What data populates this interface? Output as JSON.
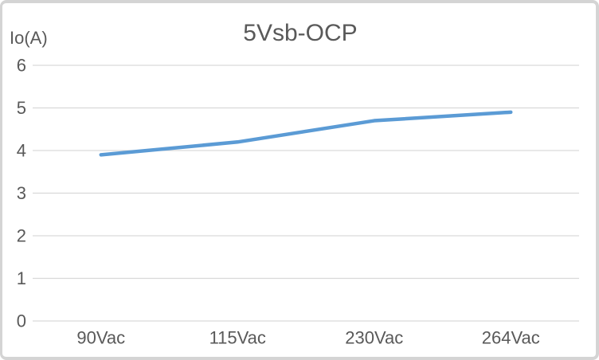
{
  "window": {
    "background_color": "#ffffff",
    "frame_color": "#d4d4d4"
  },
  "chart_data": {
    "type": "line",
    "title": "5Vsb-OCP",
    "y_axis_label": "Io(A)",
    "xlabel": "",
    "ylabel": "Io(A)",
    "categories": [
      "90Vac",
      "115Vac",
      "230Vac",
      "264Vac"
    ],
    "series": [
      {
        "values": [
          3.9,
          4.2,
          4.7,
          4.9
        ],
        "color": "#5b9bd5"
      }
    ],
    "ylim": [
      0,
      6
    ],
    "y_ticks": [
      0,
      1,
      2,
      3,
      4,
      5,
      6
    ],
    "grid": true,
    "legend": false,
    "gridline_color": "#d9d9d9",
    "text_color": "#595959"
  }
}
